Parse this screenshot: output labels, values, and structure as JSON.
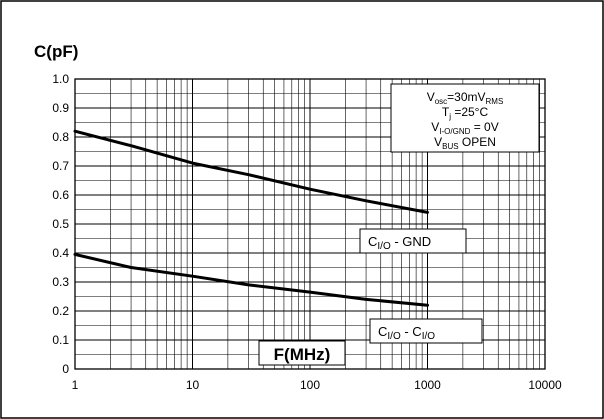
{
  "chart_data": {
    "type": "line",
    "title": "C(pF)",
    "xlabel": "F(MHz)",
    "ylabel": "C(pF)",
    "x_scale": "log",
    "xlim": [
      1,
      10000
    ],
    "ylim": [
      0,
      1.0
    ],
    "x_ticks": [
      "1",
      "10",
      "100",
      "1000",
      "10000"
    ],
    "y_ticks": [
      "0",
      "0.1",
      "0.2",
      "0.3",
      "0.4",
      "0.5",
      "0.6",
      "0.7",
      "0.8",
      "0.9",
      "1.0"
    ],
    "grid": true,
    "series": [
      {
        "name": "CI/O - GND",
        "label_main": "C",
        "label_sub": "I/O",
        "label_tail": " - GND",
        "x": [
          1,
          3,
          10,
          30,
          100,
          300,
          1000
        ],
        "y": [
          0.82,
          0.77,
          0.71,
          0.67,
          0.62,
          0.58,
          0.54
        ]
      },
      {
        "name": "CI/O - CI/O",
        "label_main": "C",
        "label_sub": "I/O",
        "label_tail": " - C",
        "label_sub2": "I/O",
        "x": [
          1,
          3,
          10,
          30,
          100,
          300,
          1000
        ],
        "y": [
          0.395,
          0.35,
          0.32,
          0.29,
          0.265,
          0.24,
          0.22
        ]
      }
    ],
    "conditions": [
      {
        "main": "V",
        "sub": "osc",
        "rest": "=30mV",
        "sub2": "RMS"
      },
      {
        "main": "T",
        "sub": "j",
        "rest": " =25°C",
        "sub2": ""
      },
      {
        "main": "V",
        "sub": "I-O/GND",
        "rest": " = 0V",
        "sub2": ""
      },
      {
        "main": "V",
        "sub": "BUS",
        "rest": " OPEN",
        "sub2": ""
      }
    ]
  }
}
